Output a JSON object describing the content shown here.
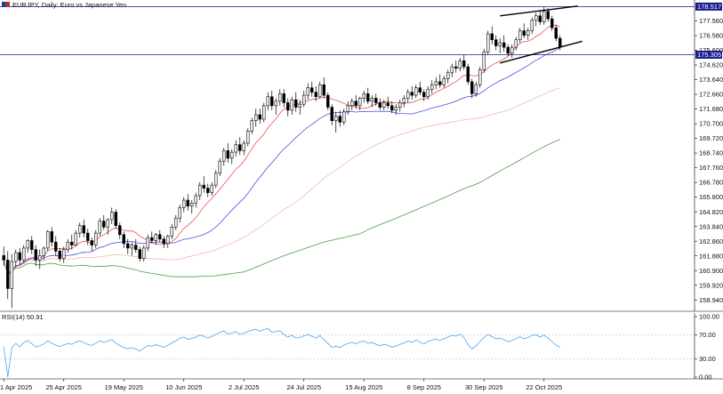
{
  "header": {
    "symbol": "EURJPY",
    "title": "EURJPY, Daily:  Euro vs Japanese Yen",
    "flag_icon": "eu-jp-flag-icon"
  },
  "colors": {
    "background": "#ffffff",
    "axis": "#000000",
    "bull_fill": "#ffffff",
    "bear_fill": "#000000",
    "candle_stroke": "#000000",
    "ma_fast": "#e8554f",
    "ma_mid": "#4a4de0",
    "ma_slow": "#f3b8b0",
    "ma_long": "#4f9a48",
    "rsi_line": "#4aa3ee",
    "hline": "#1c1c8c",
    "tag_bg": "#1c1c8c",
    "trendline": "#000000",
    "rsi_level": "#b0b0b0"
  },
  "chart_data": [
    {
      "type": "candlestick",
      "name": "EURJPY Daily",
      "x_tick_labels": [
        "1 Apr 2025",
        "25 Apr 2025",
        "19 May 2025",
        "10 Jun 2025",
        "2 Jul 2025",
        "24 Jul 2025",
        "15 Aug 2025",
        "8 Sep 2025",
        "30 Sep 2025",
        "22 Oct 2025"
      ],
      "y_tick_labels": [
        "177.560",
        "176.580",
        "175.600",
        "174.620",
        "173.640",
        "172.660",
        "171.680",
        "170.700",
        "169.720",
        "168.740",
        "167.760",
        "166.780",
        "165.800",
        "164.820",
        "163.840",
        "162.860",
        "161.880",
        "160.900",
        "159.920",
        "158.940"
      ],
      "ylim": [
        158.3,
        178.6
      ],
      "price_tags": [
        {
          "label": "178.517",
          "value": 178.517
        },
        {
          "label": "175.305",
          "value": 175.305
        }
      ],
      "ohlc": [
        [
          161.9,
          162.5,
          161.2,
          161.6
        ],
        [
          161.6,
          162.2,
          159.0,
          159.7
        ],
        [
          159.7,
          162.0,
          158.4,
          161.5
        ],
        [
          161.5,
          162.3,
          161.1,
          162.1
        ],
        [
          162.1,
          162.4,
          161.3,
          161.6
        ],
        [
          161.6,
          162.6,
          161.4,
          162.4
        ],
        [
          162.4,
          163.0,
          162.1,
          162.9
        ],
        [
          162.9,
          163.2,
          162.0,
          162.3
        ],
        [
          162.3,
          162.6,
          161.2,
          161.6
        ],
        [
          161.6,
          162.3,
          161.0,
          161.9
        ],
        [
          161.9,
          162.5,
          161.6,
          162.4
        ],
        [
          162.4,
          163.6,
          162.2,
          163.5
        ],
        [
          163.5,
          163.8,
          162.5,
          162.8
        ],
        [
          162.8,
          163.2,
          161.9,
          162.2
        ],
        [
          162.2,
          162.4,
          161.5,
          161.7
        ],
        [
          161.7,
          162.5,
          161.4,
          162.3
        ],
        [
          162.3,
          163.0,
          162.1,
          162.8
        ],
        [
          162.8,
          163.3,
          162.3,
          162.6
        ],
        [
          162.6,
          163.6,
          162.5,
          163.4
        ],
        [
          163.4,
          164.1,
          163.1,
          163.9
        ],
        [
          163.9,
          164.3,
          163.1,
          163.4
        ],
        [
          163.4,
          163.7,
          162.6,
          162.9
        ],
        [
          162.9,
          163.1,
          162.2,
          162.6
        ],
        [
          162.6,
          163.6,
          162.4,
          163.4
        ],
        [
          163.4,
          164.4,
          163.2,
          164.2
        ],
        [
          164.2,
          164.6,
          163.6,
          163.8
        ],
        [
          163.8,
          164.4,
          163.3,
          164.3
        ],
        [
          164.3,
          165.1,
          164.0,
          164.8
        ],
        [
          164.8,
          165.0,
          163.7,
          163.9
        ],
        [
          163.9,
          164.1,
          163.0,
          163.3
        ],
        [
          163.3,
          163.5,
          162.4,
          162.7
        ],
        [
          162.7,
          163.0,
          162.0,
          162.4
        ],
        [
          162.4,
          162.8,
          161.9,
          162.6
        ],
        [
          162.6,
          163.0,
          162.1,
          162.3
        ],
        [
          162.3,
          162.5,
          161.5,
          161.7
        ],
        [
          161.7,
          162.6,
          161.5,
          162.4
        ],
        [
          162.4,
          163.3,
          162.2,
          163.1
        ],
        [
          163.1,
          163.5,
          162.7,
          162.9
        ],
        [
          162.9,
          163.4,
          162.6,
          163.3
        ],
        [
          163.3,
          163.6,
          162.8,
          163.0
        ],
        [
          163.0,
          163.2,
          162.4,
          162.7
        ],
        [
          162.7,
          163.3,
          162.4,
          163.2
        ],
        [
          163.2,
          164.0,
          163.0,
          163.8
        ],
        [
          163.8,
          164.6,
          163.6,
          164.4
        ],
        [
          164.4,
          165.3,
          164.1,
          165.1
        ],
        [
          165.1,
          165.8,
          164.8,
          165.6
        ],
        [
          165.6,
          166.0,
          164.9,
          165.2
        ],
        [
          165.2,
          165.6,
          164.7,
          165.4
        ],
        [
          165.4,
          166.1,
          165.1,
          165.9
        ],
        [
          165.9,
          166.8,
          165.6,
          166.6
        ],
        [
          166.6,
          167.2,
          166.1,
          166.4
        ],
        [
          166.4,
          166.7,
          165.8,
          166.1
        ],
        [
          166.1,
          166.8,
          165.9,
          166.6
        ],
        [
          166.6,
          167.6,
          166.4,
          167.4
        ],
        [
          167.4,
          168.4,
          167.2,
          168.2
        ],
        [
          168.2,
          169.1,
          167.9,
          168.9
        ],
        [
          168.9,
          169.4,
          168.1,
          168.4
        ],
        [
          168.4,
          169.0,
          168.0,
          168.8
        ],
        [
          168.8,
          169.6,
          168.5,
          169.3
        ],
        [
          169.3,
          169.8,
          168.6,
          168.9
        ],
        [
          168.9,
          169.6,
          168.6,
          169.4
        ],
        [
          169.4,
          170.4,
          169.2,
          170.2
        ],
        [
          170.2,
          171.1,
          170.0,
          170.9
        ],
        [
          170.9,
          171.7,
          170.5,
          171.3
        ],
        [
          171.3,
          171.7,
          170.7,
          171.0
        ],
        [
          171.0,
          172.1,
          170.8,
          171.9
        ],
        [
          171.9,
          172.8,
          171.6,
          172.5
        ],
        [
          172.5,
          172.9,
          171.6,
          171.9
        ],
        [
          171.9,
          172.4,
          171.3,
          172.2
        ],
        [
          172.2,
          173.0,
          171.9,
          172.7
        ],
        [
          172.7,
          173.0,
          171.8,
          172.1
        ],
        [
          172.1,
          172.4,
          171.2,
          171.6
        ],
        [
          171.6,
          172.5,
          171.3,
          172.3
        ],
        [
          172.3,
          172.8,
          171.5,
          171.8
        ],
        [
          171.8,
          172.3,
          171.3,
          172.0
        ],
        [
          172.0,
          172.9,
          171.8,
          172.6
        ],
        [
          172.6,
          173.4,
          172.3,
          173.1
        ],
        [
          173.1,
          173.5,
          172.5,
          172.8
        ],
        [
          172.8,
          173.2,
          172.2,
          172.5
        ],
        [
          172.5,
          173.5,
          172.4,
          173.3
        ],
        [
          173.3,
          173.8,
          172.4,
          172.6
        ],
        [
          172.6,
          172.8,
          171.6,
          171.8
        ],
        [
          171.8,
          172.0,
          170.6,
          170.9
        ],
        [
          170.9,
          171.5,
          170.1,
          171.2
        ],
        [
          171.2,
          171.6,
          170.5,
          170.8
        ],
        [
          170.8,
          171.7,
          170.6,
          171.5
        ],
        [
          171.5,
          172.2,
          171.3,
          171.9
        ],
        [
          171.9,
          172.4,
          171.6,
          172.2
        ],
        [
          172.2,
          172.6,
          171.7,
          171.9
        ],
        [
          171.9,
          172.5,
          171.6,
          172.4
        ],
        [
          172.4,
          172.9,
          172.1,
          172.7
        ],
        [
          172.7,
          173.1,
          172.0,
          172.2
        ],
        [
          172.2,
          172.6,
          171.8,
          172.4
        ],
        [
          172.4,
          172.7,
          171.9,
          172.1
        ],
        [
          172.1,
          172.4,
          171.6,
          171.8
        ],
        [
          171.8,
          172.3,
          171.6,
          172.1
        ],
        [
          172.1,
          172.5,
          171.7,
          171.9
        ],
        [
          171.9,
          172.2,
          171.4,
          171.6
        ],
        [
          171.6,
          172.0,
          171.3,
          171.8
        ],
        [
          171.8,
          172.3,
          171.5,
          172.1
        ],
        [
          172.1,
          172.6,
          171.8,
          172.4
        ],
        [
          172.4,
          173.0,
          172.1,
          172.8
        ],
        [
          172.8,
          173.2,
          172.3,
          172.6
        ],
        [
          172.6,
          173.3,
          172.4,
          173.1
        ],
        [
          173.1,
          173.5,
          172.6,
          172.8
        ],
        [
          172.8,
          173.0,
          172.2,
          172.5
        ],
        [
          172.5,
          173.2,
          172.3,
          173.0
        ],
        [
          173.0,
          173.6,
          172.7,
          173.3
        ],
        [
          173.3,
          173.8,
          173.0,
          173.5
        ],
        [
          173.5,
          174.0,
          173.1,
          173.3
        ],
        [
          173.3,
          173.9,
          173.1,
          173.7
        ],
        [
          173.7,
          174.3,
          173.4,
          174.1
        ],
        [
          174.1,
          174.7,
          173.8,
          174.5
        ],
        [
          174.5,
          174.9,
          174.1,
          174.4
        ],
        [
          174.4,
          175.1,
          174.2,
          174.9
        ],
        [
          174.9,
          175.3,
          174.3,
          174.5
        ],
        [
          174.5,
          174.7,
          173.3,
          173.5
        ],
        [
          173.5,
          173.7,
          172.4,
          172.7
        ],
        [
          172.7,
          173.5,
          172.5,
          173.3
        ],
        [
          173.3,
          174.5,
          173.1,
          174.3
        ],
        [
          174.3,
          175.7,
          174.1,
          175.5
        ],
        [
          175.5,
          176.9,
          175.3,
          176.7
        ],
        [
          176.7,
          177.2,
          176.0,
          176.3
        ],
        [
          176.3,
          176.6,
          175.6,
          175.9
        ],
        [
          175.9,
          176.4,
          175.4,
          176.1
        ],
        [
          176.1,
          176.6,
          175.5,
          175.8
        ],
        [
          175.8,
          176.0,
          175.2,
          175.4
        ],
        [
          175.4,
          176.0,
          175.1,
          175.8
        ],
        [
          175.8,
          176.5,
          175.6,
          176.3
        ],
        [
          176.3,
          177.1,
          176.1,
          176.9
        ],
        [
          176.9,
          177.4,
          176.4,
          176.6
        ],
        [
          176.6,
          177.1,
          176.3,
          176.9
        ],
        [
          176.9,
          177.8,
          176.7,
          177.6
        ],
        [
          177.6,
          178.1,
          177.2,
          177.9
        ],
        [
          177.9,
          178.3,
          177.3,
          177.5
        ],
        [
          177.5,
          178.5,
          177.3,
          178.2
        ],
        [
          178.2,
          178.4,
          177.5,
          177.7
        ],
        [
          177.7,
          177.9,
          176.9,
          177.1
        ],
        [
          177.1,
          177.3,
          176.2,
          176.4
        ],
        [
          176.4,
          176.6,
          175.6,
          175.8
        ]
      ],
      "moving_averages": [
        {
          "name": "MA fast",
          "color_key": "ma_fast",
          "values_ref": "computed"
        },
        {
          "name": "MA mid",
          "color_key": "ma_mid",
          "values_ref": "computed"
        },
        {
          "name": "MA slow",
          "color_key": "ma_slow",
          "values_ref": "computed"
        },
        {
          "name": "MA long",
          "color_key": "ma_long",
          "values_ref": "computed"
        }
      ]
    },
    {
      "type": "line",
      "name": "RSI(14)",
      "label": "RSI(14) 50.91",
      "y_tick_labels": [
        "100.00",
        "70.00",
        "30.00",
        "0.00"
      ],
      "levels": [
        70,
        30
      ],
      "ylim": [
        0,
        100
      ]
    }
  ]
}
